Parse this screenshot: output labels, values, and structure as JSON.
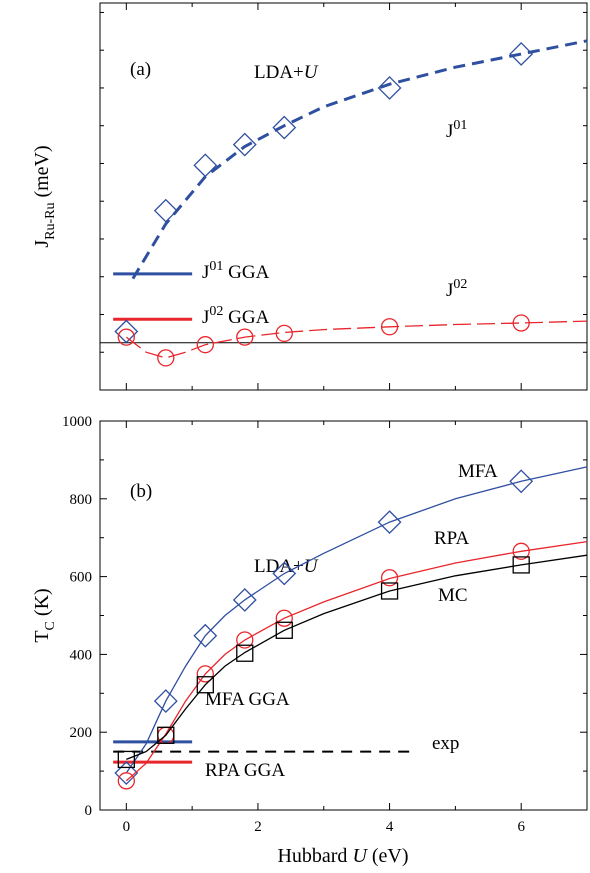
{
  "colors": {
    "blue": "#2f4fa0",
    "red": "#e8262c",
    "black": "#000000"
  },
  "chart_data": [
    {
      "type": "line",
      "panel": "(a)",
      "title": "LDA+U",
      "ylabel": {
        "main": "J",
        "sub": "Ru-Ru",
        "rest": " (meV)"
      },
      "xlim": [
        -0.4,
        7
      ],
      "ylim": [
        -2.5,
        18
      ],
      "yticks": [
        0,
        4,
        8,
        12,
        16
      ],
      "xticks": [
        0,
        2,
        4,
        6
      ],
      "zero_line": true,
      "series": [
        {
          "name": "J01",
          "sup_base": "J",
          "sup": "01",
          "color": "#2f4fa0",
          "marker": "diamond",
          "points": [
            [
              0,
              0.6
            ],
            [
              0.6,
              7.0
            ],
            [
              1.2,
              9.4
            ],
            [
              1.8,
              10.5
            ],
            [
              2.4,
              11.4
            ],
            [
              4,
              13.5
            ],
            [
              6,
              15.3
            ]
          ],
          "fit": [
            [
              0.1,
              3.4
            ],
            [
              0.6,
              6.3
            ],
            [
              1.2,
              8.8
            ],
            [
              1.8,
              10.4
            ],
            [
              2.4,
              11.5
            ],
            [
              3,
              12.5
            ],
            [
              4,
              13.7
            ],
            [
              5,
              14.6
            ],
            [
              6,
              15.3
            ],
            [
              7,
              16.0
            ]
          ],
          "fit_style": "dashed-thick"
        },
        {
          "name": "J02",
          "sup_base": "J",
          "sup": "02",
          "color": "#e8262c",
          "marker": "circle",
          "points": [
            [
              0,
              0.3
            ],
            [
              0.6,
              -0.8
            ],
            [
              1.2,
              -0.1
            ],
            [
              1.8,
              0.3
            ],
            [
              2.4,
              0.5
            ],
            [
              4,
              0.85
            ],
            [
              6,
              1.05
            ]
          ],
          "fit": [
            [
              0,
              0.3
            ],
            [
              0.3,
              -0.5
            ],
            [
              0.6,
              -0.8
            ],
            [
              0.9,
              -0.5
            ],
            [
              1.2,
              -0.1
            ],
            [
              1.8,
              0.3
            ],
            [
              2.4,
              0.55
            ],
            [
              3,
              0.7
            ],
            [
              4,
              0.85
            ],
            [
              5,
              0.97
            ],
            [
              6,
              1.05
            ],
            [
              7,
              1.15
            ]
          ],
          "fit_style": "dashed-thin"
        }
      ],
      "reference_lines": [
        {
          "base": "J",
          "sup": "01",
          "text": " GGA",
          "value": 3.65,
          "x": [
            -0.2,
            1.0
          ],
          "color": "#2f4fa0"
        },
        {
          "base": "J",
          "sup": "02",
          "text": " GGA",
          "value": 1.25,
          "x": [
            -0.2,
            1.0
          ],
          "color": "#e8262c"
        }
      ]
    },
    {
      "type": "line",
      "panel": "(b)",
      "title": "LDA+U",
      "ylabel": {
        "main": "T",
        "sub": "C",
        "rest": " (K)"
      },
      "xlabel": {
        "main": "Hubbard ",
        "italic": "U",
        "rest": " (eV)"
      },
      "xlim": [
        -0.4,
        7
      ],
      "ylim": [
        0,
        1000
      ],
      "yticks": [
        0,
        200,
        400,
        600,
        800,
        1000
      ],
      "xticks": [
        0,
        2,
        4,
        6
      ],
      "series": [
        {
          "name": "MFA",
          "color": "#2f4fa0",
          "marker": "diamond",
          "points": [
            [
              0,
              95
            ],
            [
              0.6,
              280
            ],
            [
              1.2,
              448
            ],
            [
              1.8,
              540
            ],
            [
              2.4,
              608
            ],
            [
              4,
              740
            ],
            [
              6,
              845
            ]
          ],
          "fit": [
            [
              0,
              95
            ],
            [
              0.3,
              170
            ],
            [
              0.6,
              280
            ],
            [
              0.9,
              370
            ],
            [
              1.2,
              448
            ],
            [
              1.5,
              500
            ],
            [
              1.8,
              540
            ],
            [
              2.4,
              608
            ],
            [
              3,
              660
            ],
            [
              4,
              740
            ],
            [
              5,
              800
            ],
            [
              6,
              845
            ],
            [
              7,
              882
            ]
          ]
        },
        {
          "name": "RPA",
          "color": "#e8262c",
          "marker": "circle",
          "points": [
            [
              0,
              75
            ],
            [
              0.6,
              192
            ],
            [
              1.2,
              350
            ],
            [
              1.8,
              437
            ],
            [
              2.4,
              493
            ],
            [
              4,
              597
            ],
            [
              6,
              665
            ]
          ],
          "fit": [
            [
              0,
              75
            ],
            [
              0.3,
              120
            ],
            [
              0.6,
              195
            ],
            [
              0.9,
              280
            ],
            [
              1.2,
              350
            ],
            [
              1.5,
              400
            ],
            [
              1.8,
              437
            ],
            [
              2.4,
              493
            ],
            [
              3,
              535
            ],
            [
              4,
              595
            ],
            [
              5,
              635
            ],
            [
              6,
              665
            ],
            [
              7,
              690
            ]
          ]
        },
        {
          "name": "MC",
          "color": "#000000",
          "marker": "square",
          "points": [
            [
              0,
              130
            ],
            [
              0.6,
              192
            ],
            [
              1.2,
              322
            ],
            [
              1.8,
              403
            ],
            [
              2.4,
              462
            ],
            [
              4,
              563
            ],
            [
              6,
              630
            ]
          ],
          "fit": [
            [
              0,
              130
            ],
            [
              0.3,
              150
            ],
            [
              0.6,
              192
            ],
            [
              0.9,
              260
            ],
            [
              1.2,
              322
            ],
            [
              1.5,
              370
            ],
            [
              1.8,
              405
            ],
            [
              2.4,
              462
            ],
            [
              3,
              505
            ],
            [
              4,
              563
            ],
            [
              5,
              602
            ],
            [
              6,
              630
            ],
            [
              7,
              655
            ]
          ]
        }
      ],
      "reference_lines": [
        {
          "text": "MFA GGA",
          "value": 175,
          "x": [
            -0.2,
            1.0
          ],
          "color": "#2f4fa0",
          "style": "solid"
        },
        {
          "text": "RPA GGA",
          "value": 123,
          "x": [
            -0.2,
            1.0
          ],
          "color": "#e8262c",
          "style": "solid"
        },
        {
          "text": "exp",
          "value": 150,
          "x": [
            -0.2,
            4.4
          ],
          "color": "#000000",
          "style": "dashed"
        }
      ]
    }
  ]
}
